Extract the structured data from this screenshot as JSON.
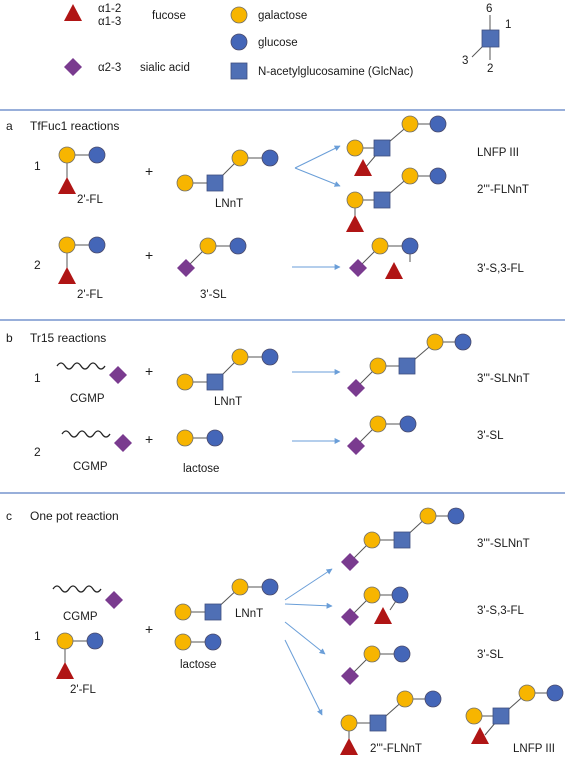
{
  "legend": {
    "fucose_link_1": "α1-2",
    "fucose_link_2": "α1-3",
    "fucose": "fucose",
    "sialic_link": "α2-3",
    "sialic_acid": "sialic acid",
    "galactose": "galactose",
    "glucose": "glucose",
    "glcnac": "N-acetylglucosamine (GlcNac)",
    "pos_6": "6",
    "pos_1": "1",
    "pos_3": "3",
    "pos_2": "2"
  },
  "section_a": {
    "letter": "a",
    "title": "TfFuc1 reactions",
    "r1_num": "1",
    "r1_donor": "2'-FL",
    "r1_acceptor": "LNnT",
    "r1_product1": "LNFP III",
    "r1_product2": "2'''-FLNnT",
    "r2_num": "2",
    "r2_donor": "2'-FL",
    "r2_acceptor": "3'-SL",
    "r2_product": "3'-S,3-FL"
  },
  "section_b": {
    "letter": "b",
    "title": "Tr15 reactions",
    "r1_num": "1",
    "r1_donor": "CGMP",
    "r1_acceptor": "LNnT",
    "r1_product": "3'''-SLNnT",
    "r2_num": "2",
    "r2_donor": "CGMP",
    "r2_acceptor": "lactose",
    "r2_product": "3'-SL"
  },
  "section_c": {
    "letter": "c",
    "title": "One pot reaction",
    "num": "1",
    "donor1": "CGMP",
    "donor2": "2'-FL",
    "acceptor1": "LNnT",
    "acceptor2": "lactose",
    "product1": "3'''-SLNnT",
    "product2": "3'-S,3-FL",
    "product3": "3'-SL",
    "product4": "2'''-FLNnT",
    "product5": "LNFP III"
  },
  "plus": "+",
  "colors": {
    "galactose": "#f7b500",
    "glucose": "#4466b8",
    "glcnac": "#4f6fb5",
    "fucose": "#b01515",
    "sialic_acid": "#7a3b8f",
    "separator": "#5b7fc4",
    "arrow": "#6a9ed8"
  }
}
